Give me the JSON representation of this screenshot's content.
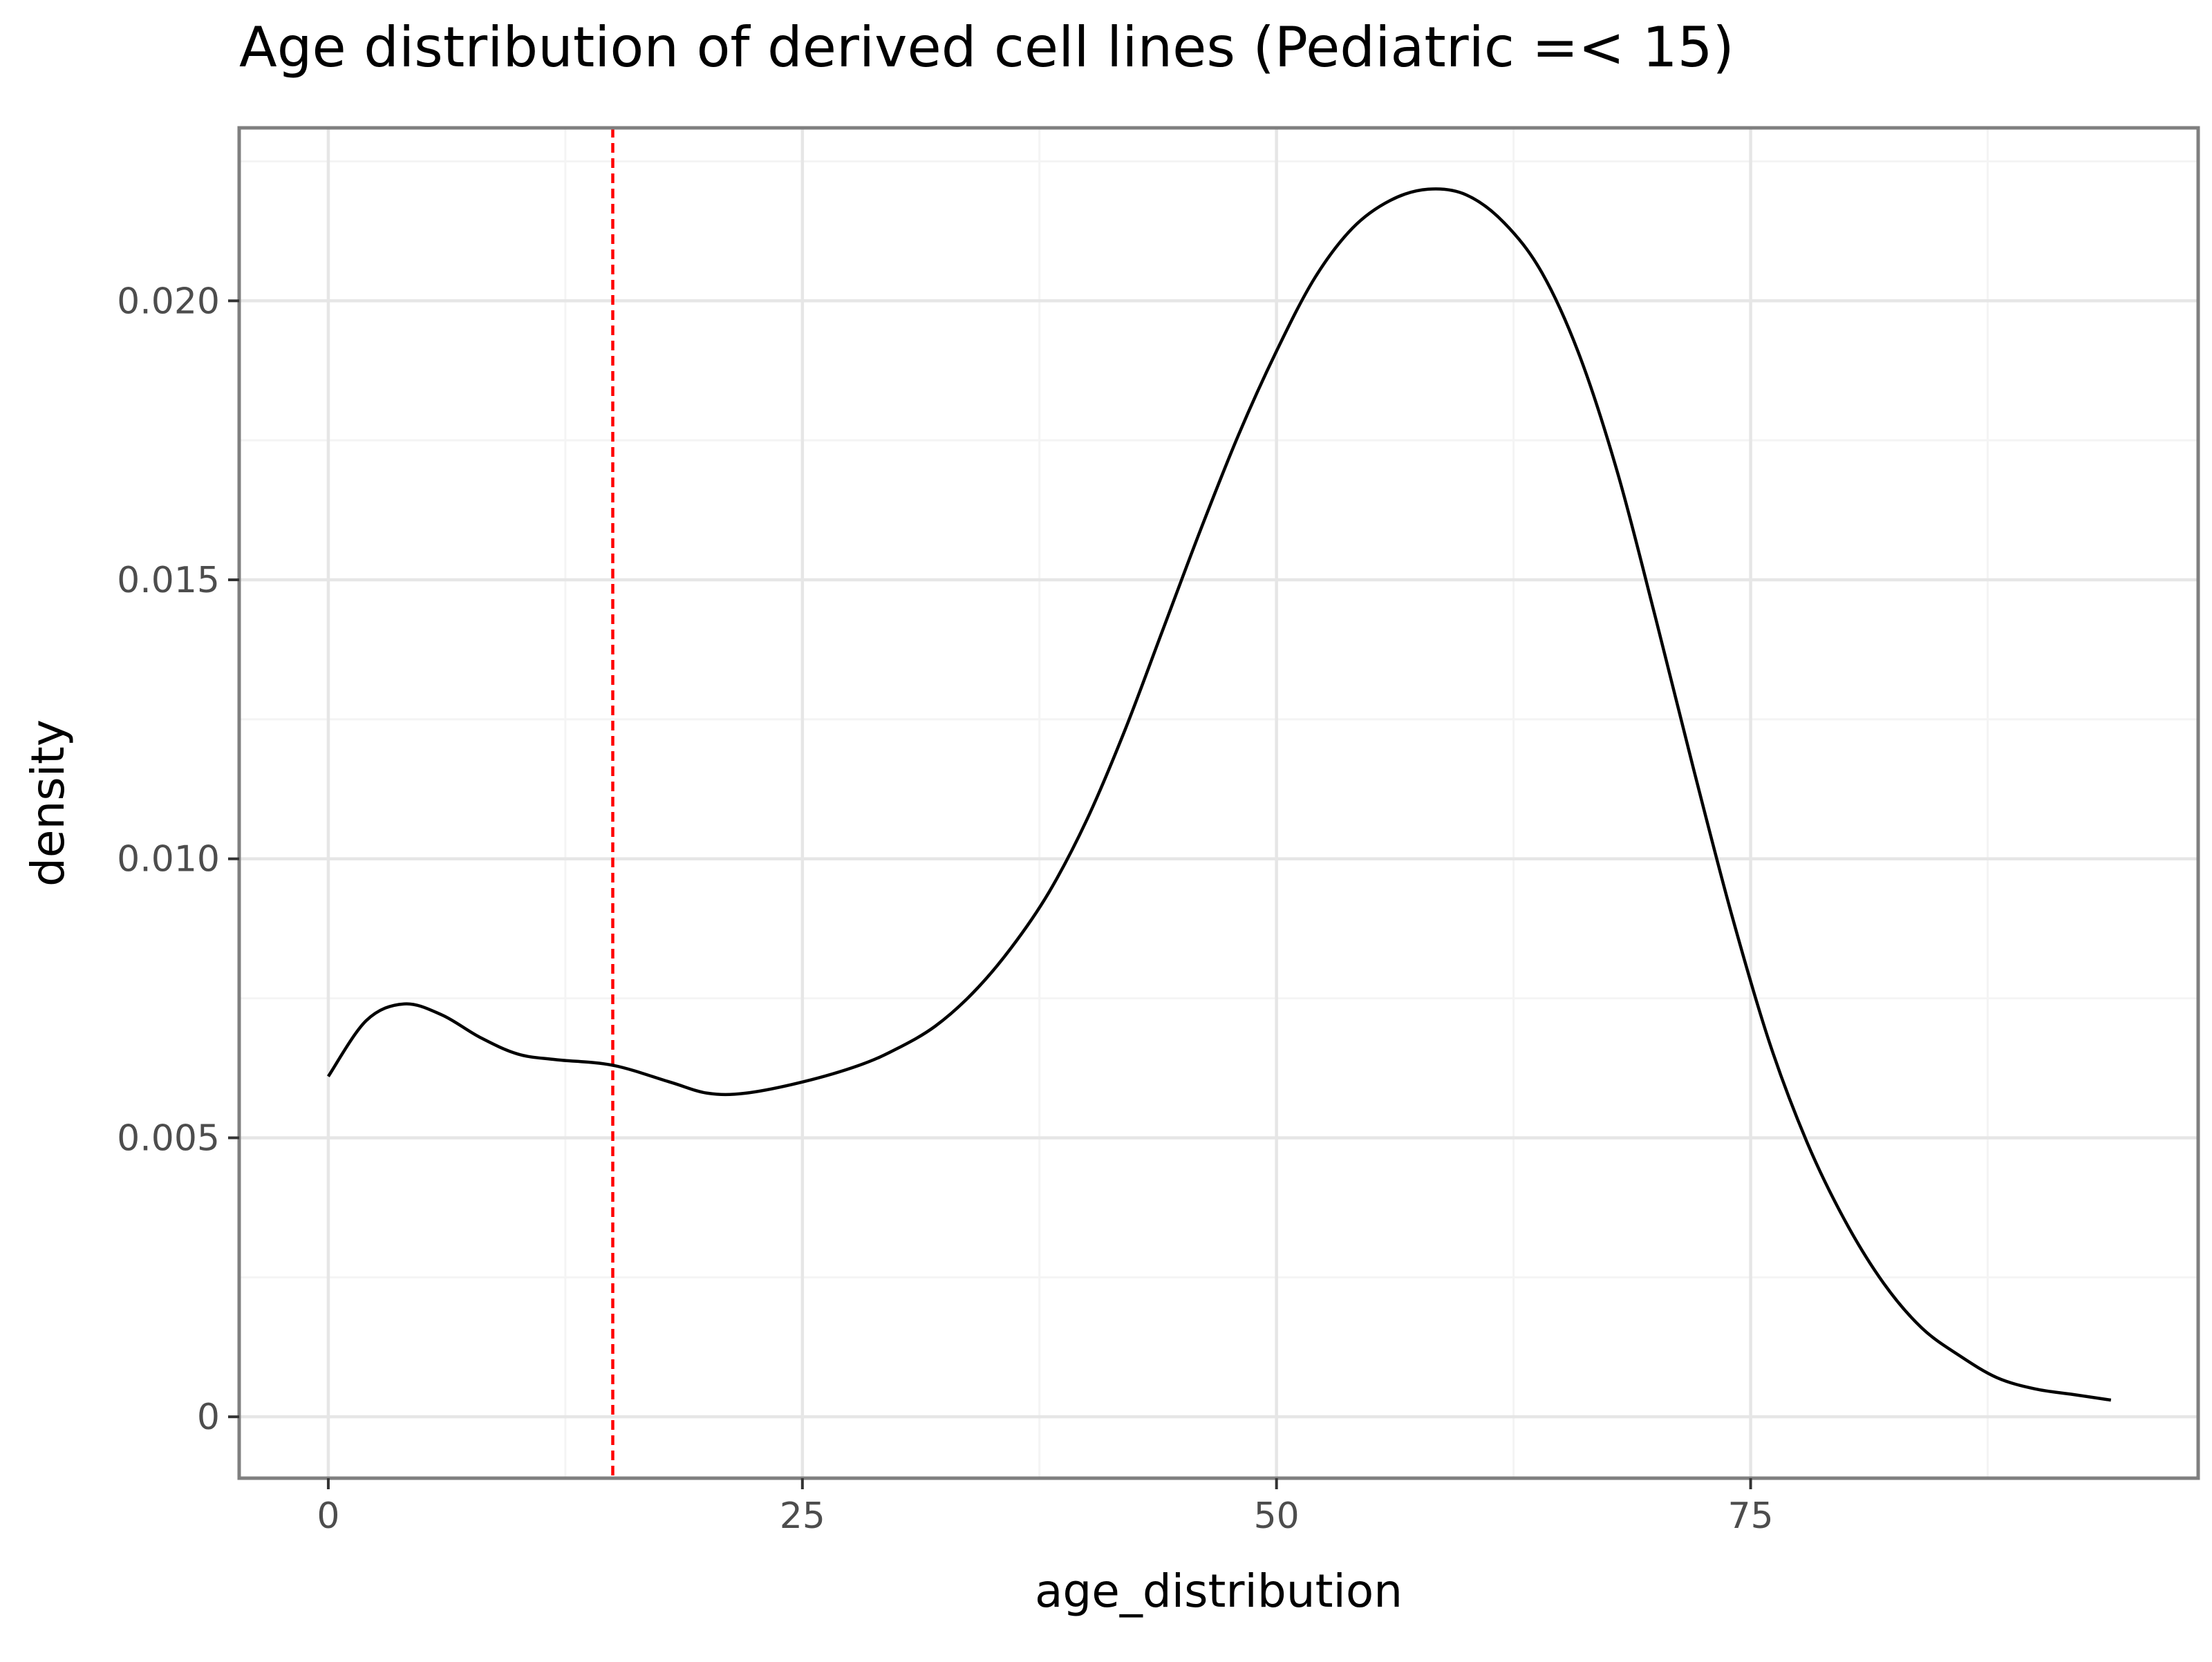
{
  "chart_data": {
    "type": "line",
    "title": "Age distribution of derived cell lines (Pediatric =< 15)",
    "xlabel": "age_distribution",
    "ylabel": "density",
    "xlim": [
      -4.7,
      98.6
    ],
    "ylim": [
      -0.0011,
      0.0231
    ],
    "x_ticks": [
      0,
      25,
      50,
      75
    ],
    "x_tick_labels": [
      "0",
      "25",
      "50",
      "75"
    ],
    "x_minor_ticks": [
      12.5,
      37.5,
      62.5,
      87.5
    ],
    "y_ticks": [
      0,
      0.005,
      0.01,
      0.015,
      0.02
    ],
    "y_tick_labels": [
      "0",
      "0.005",
      "0.010",
      "0.015",
      "0.020"
    ],
    "y_minor_ticks": [
      0.0025,
      0.0075,
      0.0125,
      0.0175,
      0.0225
    ],
    "grid": true,
    "legend": "none",
    "reference_line": {
      "orientation": "vertical",
      "x": 15,
      "style": "dashed",
      "color": "#ff0000"
    },
    "series": [
      {
        "color": "#000000",
        "x": [
          0,
          2,
          4,
          6,
          8,
          10,
          12,
          15,
          18,
          20,
          22,
          25,
          28,
          30,
          32,
          34,
          36,
          38,
          40,
          42,
          44,
          46,
          48,
          50,
          52,
          54,
          56,
          58,
          60,
          62,
          64,
          66,
          68,
          70,
          72,
          74,
          76,
          78,
          80,
          82,
          84,
          86,
          88,
          90,
          92,
          94
        ],
        "y": [
          0.0061,
          0.0071,
          0.0074,
          0.0072,
          0.0068,
          0.0065,
          0.0064,
          0.0063,
          0.006,
          0.0058,
          0.0058,
          0.006,
          0.0063,
          0.0066,
          0.007,
          0.0076,
          0.0084,
          0.0094,
          0.0107,
          0.0123,
          0.0141,
          0.0159,
          0.0176,
          0.0191,
          0.0204,
          0.0213,
          0.0218,
          0.022,
          0.0219,
          0.0214,
          0.0205,
          0.019,
          0.0169,
          0.0143,
          0.0116,
          0.009,
          0.0067,
          0.0049,
          0.0035,
          0.0024,
          0.0016,
          0.0011,
          0.0007,
          0.0005,
          0.0004,
          0.0003
        ]
      }
    ]
  }
}
